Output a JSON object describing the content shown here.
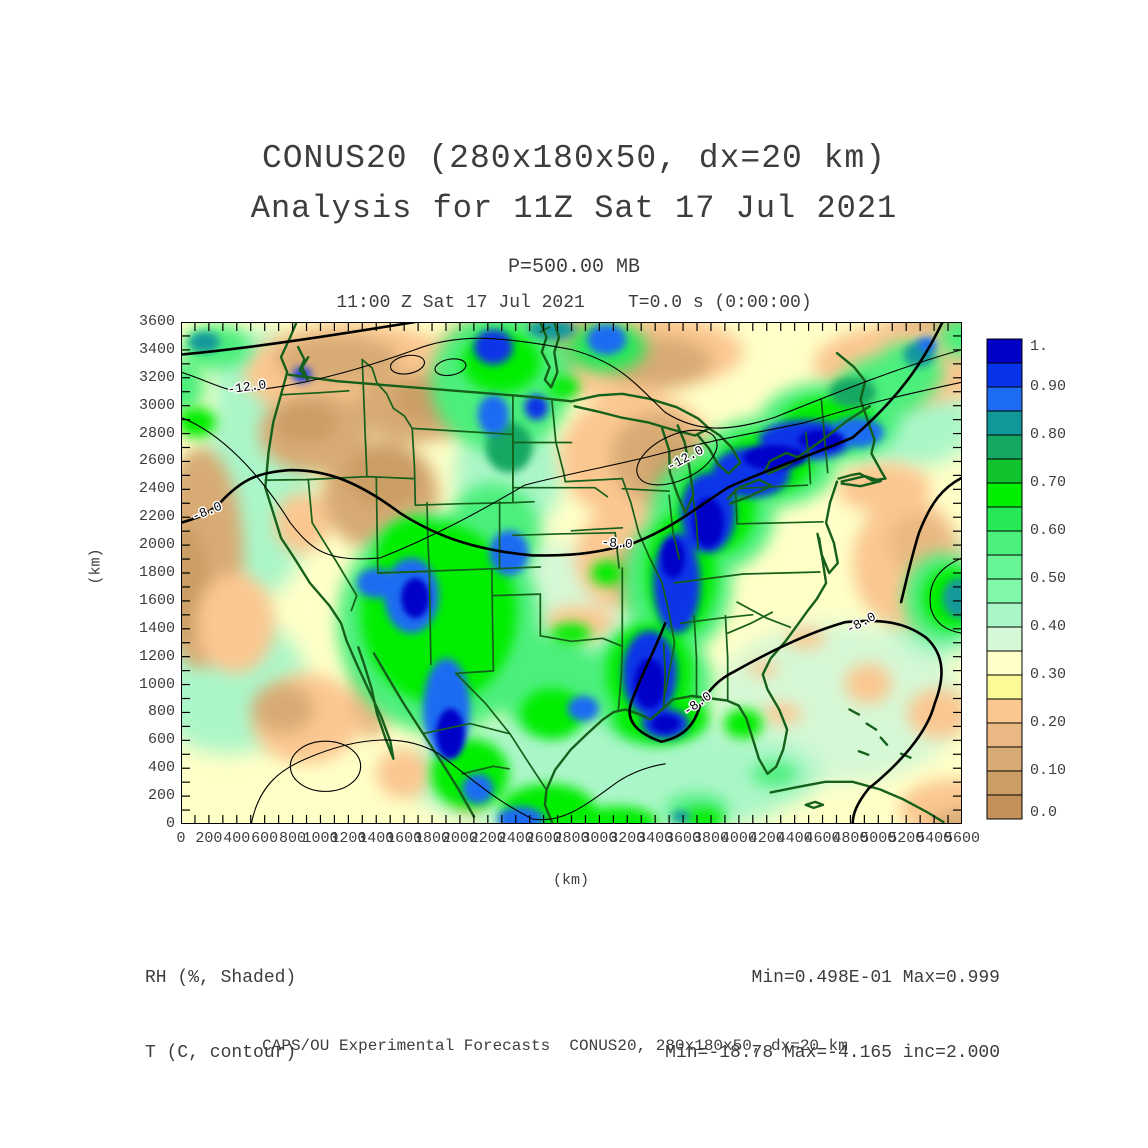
{
  "header": {
    "title_line1": "CONUS20 (280x180x50, dx=20 km)",
    "title_line2": "Analysis for 11Z Sat 17 Jul 2021",
    "pressure_label": "P=500.00 MB",
    "time_label": "11:00 Z Sat 17 Jul 2021    T=0.0 s (0:00:00)"
  },
  "annotations": {
    "shaded_field_label": "RH (%, Shaded)",
    "contour_field_label": "T (C, contour)",
    "shaded_stats": "Min=0.498E-01 Max=0.999",
    "contour_stats": "Min=-18.78 Max=-4.165 inc=2.000"
  },
  "footer": {
    "text": "CAPS/OU Experimental Forecasts  CONUS20, 280x180x50, dx=20 km"
  },
  "chart_data": {
    "type": "heatmap",
    "title": "CONUS20 (280x180x50, dx=20 km) Analysis for 11Z Sat 17 Jul 2021",
    "subtitle": "P=500.00 MB",
    "valid_time": "11:00 Z Sat 17 Jul 2021",
    "forecast_time": "T=0.0 s (0:00:00)",
    "xlabel": "(km)",
    "ylabel": "(km)",
    "x_range": [
      0,
      5600
    ],
    "y_range": [
      0,
      3600
    ],
    "tick_minor_step": 100,
    "tick_label_step": 200,
    "shaded_field": {
      "name": "RH",
      "units": "%",
      "min": "0.498E-01",
      "max": "0.999"
    },
    "contour_field": {
      "name": "T",
      "units": "C",
      "min": -18.78,
      "max": -4.165,
      "increment": 2.0
    },
    "colorbar": {
      "tick_labels": [
        "1.",
        "0.90",
        "0.80",
        "0.70",
        "0.60",
        "0.50",
        "0.40",
        "0.30",
        "0.20",
        "0.10",
        "0.0"
      ],
      "levels": [
        0,
        0.05,
        0.1,
        0.15,
        0.2,
        0.25,
        0.3,
        0.35,
        0.4,
        0.45,
        0.5,
        0.55,
        0.6,
        0.65,
        0.7,
        0.75,
        0.8,
        0.85,
        0.9,
        0.95,
        1.0
      ],
      "colors_low_to_high": [
        "#C39158",
        "#CB9E66",
        "#D8AB74",
        "#EAB983",
        "#FBC791",
        "#FAFA96",
        "#FFFFC8",
        "#D6F8D6",
        "#ABF6C8",
        "#7FF8A8",
        "#68F596",
        "#4BEF7B",
        "#27E957",
        "#00EE00",
        "#13C22F",
        "#15A863",
        "#12989B",
        "#1E6CF2",
        "#0734E8",
        "#0000C8"
      ]
    },
    "map_colors": {
      "boundary_green": "#15601a",
      "contour_black": "#000000",
      "base_fill_index": 6
    },
    "contour_labels": [
      {
        "text": "-12.0",
        "x": 0.085,
        "y": 0.137,
        "rot": -8
      },
      {
        "text": "-12.0",
        "x": 0.648,
        "y": 0.278,
        "rot": -28
      },
      {
        "text": "-8.0",
        "x": 0.035,
        "y": 0.384,
        "rot": -22
      },
      {
        "text": "-8.0",
        "x": 0.558,
        "y": 0.448,
        "rot": 4
      },
      {
        "text": "-8.0",
        "x": 0.664,
        "y": 0.766,
        "rot": -35
      },
      {
        "text": "-8.0",
        "x": 0.873,
        "y": 0.606,
        "rot": -28
      }
    ],
    "rh_blobs": {
      "comment": "approximate shaded RH field: [x_frac, y_frac, rx_frac, ry_frac, color_index]; color_index into colors_low_to_high",
      "broad": [
        [
          0.1,
          0.3,
          0.07,
          0.25,
          8
        ],
        [
          0.1,
          0.12,
          0.06,
          0.1,
          8
        ],
        [
          0.46,
          0.6,
          0.16,
          0.16,
          7
        ],
        [
          0.55,
          0.9,
          0.26,
          0.13,
          8
        ],
        [
          0.84,
          0.76,
          0.16,
          0.16,
          7
        ],
        [
          0.06,
          0.72,
          0.1,
          0.14,
          8
        ],
        [
          0.93,
          0.2,
          0.09,
          0.09,
          8
        ],
        [
          0.7,
          0.9,
          0.12,
          0.08,
          8
        ],
        [
          0.42,
          0.3,
          0.07,
          0.12,
          8
        ],
        [
          0.97,
          0.55,
          0.07,
          0.12,
          8
        ]
      ],
      "tans": [
        [
          0.22,
          0.1,
          0.14,
          0.1,
          4
        ],
        [
          0.2,
          0.075,
          0.08,
          0.05,
          2
        ],
        [
          0.17,
          0.22,
          0.07,
          0.08,
          2
        ],
        [
          0.16,
          0.2,
          0.04,
          0.04,
          1
        ],
        [
          0.52,
          0.06,
          0.2,
          0.09,
          4
        ],
        [
          0.48,
          0.04,
          0.08,
          0.045,
          2
        ],
        [
          0.61,
          0.08,
          0.07,
          0.05,
          2
        ],
        [
          0.3,
          0.17,
          0.08,
          0.07,
          2
        ],
        [
          0.315,
          0.155,
          0.045,
          0.04,
          1
        ],
        [
          0.255,
          0.345,
          0.075,
          0.11,
          2
        ],
        [
          0.26,
          0.31,
          0.05,
          0.06,
          1
        ],
        [
          0.155,
          0.4,
          0.035,
          0.06,
          4
        ],
        [
          0.025,
          0.47,
          0.055,
          0.22,
          2
        ],
        [
          0.005,
          0.52,
          0.03,
          0.12,
          1
        ],
        [
          0.07,
          0.6,
          0.05,
          0.1,
          4
        ],
        [
          0.16,
          0.79,
          0.07,
          0.09,
          4
        ],
        [
          0.13,
          0.77,
          0.04,
          0.05,
          2
        ],
        [
          0.245,
          0.74,
          0.025,
          0.09,
          3
        ],
        [
          0.585,
          0.27,
          0.1,
          0.13,
          4
        ],
        [
          0.61,
          0.27,
          0.06,
          0.09,
          2
        ],
        [
          0.635,
          0.3,
          0.035,
          0.05,
          1
        ],
        [
          0.565,
          0.47,
          0.06,
          0.1,
          4
        ],
        [
          0.59,
          0.5,
          0.04,
          0.06,
          2
        ],
        [
          0.6,
          0.52,
          0.025,
          0.035,
          1
        ],
        [
          0.51,
          0.6,
          0.045,
          0.035,
          4
        ],
        [
          0.97,
          0.04,
          0.09,
          0.06,
          2
        ],
        [
          1.0,
          0.02,
          0.05,
          0.035,
          1
        ],
        [
          0.93,
          0.085,
          0.12,
          0.08,
          4
        ],
        [
          0.93,
          0.48,
          0.07,
          0.13,
          4
        ],
        [
          0.945,
          0.44,
          0.04,
          0.06,
          3
        ],
        [
          0.9,
          0.33,
          0.06,
          0.05,
          4
        ],
        [
          0.8,
          0.63,
          0.025,
          0.02,
          4
        ],
        [
          0.745,
          0.69,
          0.02,
          0.015,
          4
        ],
        [
          0.77,
          0.78,
          0.025,
          0.02,
          4
        ],
        [
          0.88,
          0.72,
          0.03,
          0.04,
          4
        ],
        [
          0.97,
          0.78,
          0.04,
          0.05,
          4
        ],
        [
          0.99,
          0.97,
          0.07,
          0.06,
          4
        ],
        [
          1.0,
          1.0,
          0.04,
          0.03,
          2
        ],
        [
          0.37,
          0.95,
          0.02,
          0.03,
          4
        ],
        [
          0.285,
          0.9,
          0.035,
          0.05,
          4
        ]
      ],
      "greens": [
        [
          0.045,
          0.05,
          0.045,
          0.045,
          11
        ],
        [
          0.0,
          0.13,
          0.03,
          0.05,
          11
        ],
        [
          0.41,
          0.12,
          0.09,
          0.14,
          11
        ],
        [
          0.545,
          0.05,
          0.05,
          0.05,
          12
        ],
        [
          0.33,
          0.6,
          0.13,
          0.22,
          11
        ],
        [
          0.4,
          0.42,
          0.06,
          0.1,
          11
        ],
        [
          0.47,
          0.72,
          0.07,
          0.1,
          11
        ],
        [
          0.6,
          0.72,
          0.08,
          0.12,
          11
        ],
        [
          0.635,
          0.52,
          0.07,
          0.14,
          11
        ],
        [
          0.68,
          0.38,
          0.08,
          0.12,
          11
        ],
        [
          0.75,
          0.28,
          0.09,
          0.09,
          11
        ],
        [
          0.83,
          0.2,
          0.09,
          0.08,
          11
        ],
        [
          0.9,
          0.13,
          0.06,
          0.06,
          11
        ],
        [
          0.93,
          0.1,
          0.045,
          0.06,
          11
        ],
        [
          0.975,
          0.55,
          0.05,
          0.09,
          11
        ],
        [
          0.66,
          0.97,
          0.04,
          0.03,
          11
        ],
        [
          0.76,
          0.9,
          0.03,
          0.025,
          11
        ],
        [
          1.0,
          0.03,
          0.03,
          0.04,
          11
        ]
      ],
      "brights": [
        [
          0.02,
          0.2,
          0.025,
          0.03,
          13
        ],
        [
          0.41,
          0.08,
          0.05,
          0.06,
          13
        ],
        [
          0.49,
          0.13,
          0.02,
          0.02,
          13
        ],
        [
          0.33,
          0.58,
          0.1,
          0.18,
          13
        ],
        [
          0.3,
          0.47,
          0.05,
          0.08,
          13
        ],
        [
          0.6,
          0.7,
          0.055,
          0.1,
          13
        ],
        [
          0.64,
          0.5,
          0.045,
          0.12,
          13
        ],
        [
          0.685,
          0.37,
          0.05,
          0.09,
          13
        ],
        [
          0.75,
          0.28,
          0.06,
          0.06,
          13
        ],
        [
          0.83,
          0.2,
          0.06,
          0.05,
          13
        ],
        [
          0.5,
          0.62,
          0.025,
          0.02,
          13
        ],
        [
          0.475,
          0.78,
          0.04,
          0.05,
          13
        ],
        [
          0.545,
          0.5,
          0.02,
          0.025,
          13
        ],
        [
          0.615,
          0.79,
          0.06,
          0.05,
          13
        ],
        [
          0.37,
          0.9,
          0.05,
          0.07,
          13
        ],
        [
          0.47,
          0.97,
          0.06,
          0.05,
          13
        ],
        [
          0.56,
          0.995,
          0.05,
          0.03,
          13
        ],
        [
          0.67,
          0.99,
          0.025,
          0.02,
          13
        ],
        [
          0.72,
          0.8,
          0.025,
          0.03,
          13
        ],
        [
          0.985,
          0.55,
          0.035,
          0.06,
          13
        ]
      ],
      "teals": [
        [
          0.03,
          0.04,
          0.02,
          0.02,
          16
        ],
        [
          0.475,
          0.015,
          0.03,
          0.02,
          16
        ],
        [
          0.945,
          0.065,
          0.02,
          0.025,
          16
        ],
        [
          0.995,
          0.55,
          0.02,
          0.04,
          16
        ],
        [
          0.64,
          0.985,
          0.012,
          0.012,
          16
        ],
        [
          0.86,
          0.14,
          0.03,
          0.03,
          15
        ],
        [
          0.42,
          0.25,
          0.03,
          0.05,
          15
        ]
      ],
      "blues": [
        [
          0.155,
          0.105,
          0.012,
          0.015,
          18
        ],
        [
          0.4,
          0.05,
          0.025,
          0.035,
          18
        ],
        [
          0.4,
          0.185,
          0.02,
          0.04,
          17
        ],
        [
          0.455,
          0.17,
          0.015,
          0.025,
          18
        ],
        [
          0.545,
          0.035,
          0.025,
          0.03,
          17
        ],
        [
          0.295,
          0.545,
          0.035,
          0.075,
          17
        ],
        [
          0.34,
          0.77,
          0.03,
          0.1,
          17
        ],
        [
          0.42,
          0.46,
          0.025,
          0.045,
          17
        ],
        [
          0.25,
          0.52,
          0.025,
          0.03,
          17
        ],
        [
          0.515,
          0.77,
          0.02,
          0.025,
          17
        ],
        [
          0.6,
          0.7,
          0.035,
          0.085,
          18
        ],
        [
          0.635,
          0.52,
          0.03,
          0.1,
          18
        ],
        [
          0.675,
          0.38,
          0.035,
          0.08,
          18
        ],
        [
          0.73,
          0.3,
          0.05,
          0.05,
          18
        ],
        [
          0.8,
          0.235,
          0.06,
          0.04,
          18
        ],
        [
          0.865,
          0.22,
          0.035,
          0.03,
          17
        ],
        [
          0.435,
          0.99,
          0.03,
          0.025,
          17
        ],
        [
          0.38,
          0.93,
          0.02,
          0.03,
          17
        ],
        [
          0.955,
          0.045,
          0.012,
          0.015,
          17
        ],
        [
          0.62,
          0.8,
          0.03,
          0.03,
          18
        ]
      ],
      "darks": [
        [
          0.6,
          0.72,
          0.02,
          0.05,
          19
        ],
        [
          0.675,
          0.4,
          0.02,
          0.05,
          19
        ],
        [
          0.76,
          0.27,
          0.04,
          0.025,
          19
        ],
        [
          0.82,
          0.235,
          0.03,
          0.02,
          19
        ],
        [
          0.63,
          0.47,
          0.015,
          0.04,
          19
        ],
        [
          0.345,
          0.82,
          0.018,
          0.05,
          19
        ],
        [
          0.3,
          0.55,
          0.018,
          0.04,
          19
        ],
        [
          0.62,
          0.8,
          0.018,
          0.018,
          19
        ]
      ]
    }
  }
}
